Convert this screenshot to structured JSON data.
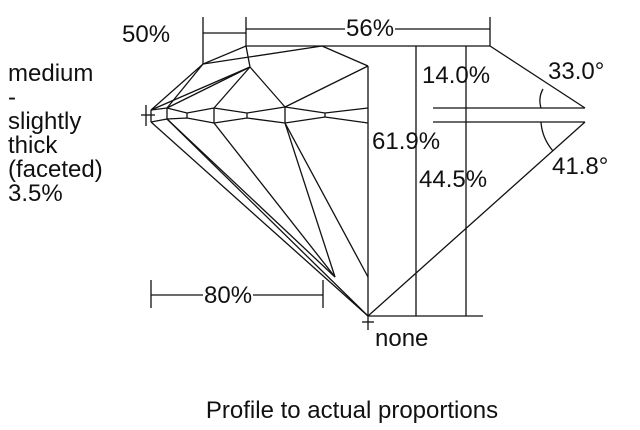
{
  "labels": {
    "star_length": "50%",
    "table": "56%",
    "crown_height": "14.0%",
    "crown_angle": "33.0°",
    "total_depth": "61.9%",
    "pavilion_depth": "44.5%",
    "pavilion_angle": "41.8°",
    "lower_half_length": "80%",
    "culet": "none"
  },
  "girdle": [
    "medium",
    "-",
    "slightly",
    "thick",
    "(faceted)",
    "3.5%"
  ],
  "caption": "Profile to actual proportions",
  "colors": {
    "line": "#111111",
    "background": "#ffffff"
  }
}
